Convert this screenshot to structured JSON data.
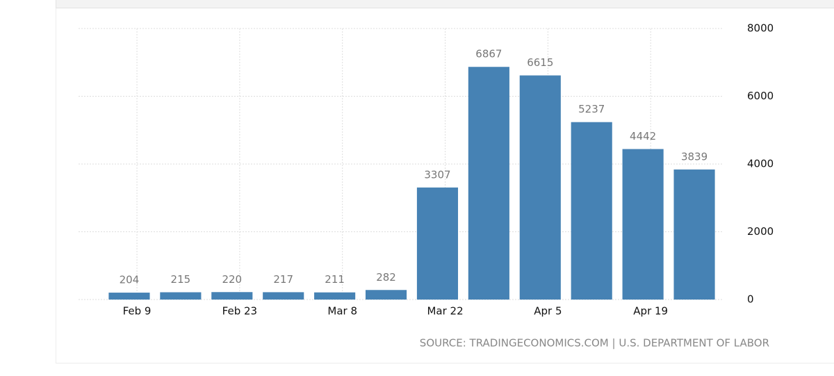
{
  "chart_data": {
    "type": "bar",
    "categories": [
      "Feb 9",
      null,
      "Feb 23",
      null,
      "Mar 8",
      null,
      "Mar 22",
      null,
      "Apr 5",
      null,
      "Apr 19",
      null
    ],
    "values": [
      204,
      215,
      220,
      217,
      211,
      282,
      3307,
      6867,
      6615,
      5237,
      4442,
      3839
    ],
    "color": "#4682b4",
    "ylim": [
      0,
      8000
    ],
    "yticks": [
      0,
      2000,
      4000,
      6000,
      8000
    ],
    "grid": true,
    "source": "SOURCE: TRADINGECONOMICS.COM | U.S. DEPARTMENT OF LABOR"
  }
}
